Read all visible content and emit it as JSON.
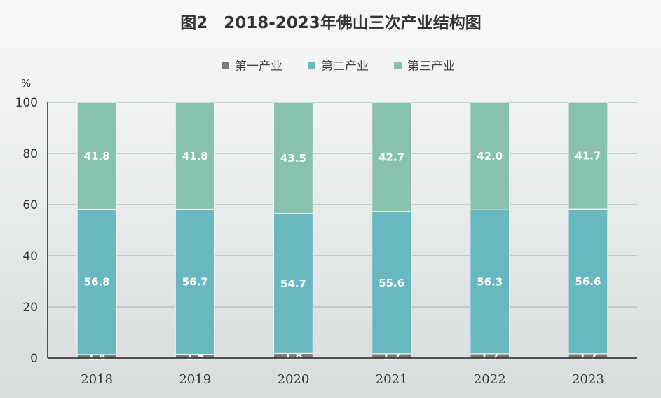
{
  "chart_data": {
    "type": "bar",
    "stacked": true,
    "title": "图2　2018-2023年佛山三次产业结构图",
    "ylabel": "%",
    "ylim": [
      0,
      100
    ],
    "yticks": [
      "0",
      "20",
      "40",
      "60",
      "80",
      "100"
    ],
    "categories": [
      "2018",
      "2019",
      "2020",
      "2021",
      "2022",
      "2023"
    ],
    "series": [
      {
        "name": "第一产业",
        "color": "#7a7a7a",
        "values": [
          1.4,
          1.5,
          1.8,
          1.7,
          1.7,
          1.7
        ],
        "labels": [
          "1.4",
          "1.5",
          "1.8",
          "1.7",
          "1.7",
          "1.7"
        ]
      },
      {
        "name": "第二产业",
        "color": "#67b8c0",
        "values": [
          56.8,
          56.7,
          54.7,
          55.6,
          56.3,
          56.6
        ],
        "labels": [
          "56.8",
          "56.7",
          "54.7",
          "55.6",
          "56.3",
          "56.6"
        ]
      },
      {
        "name": "第三产业",
        "color": "#88c2ad",
        "values": [
          41.8,
          41.8,
          43.5,
          42.7,
          42.0,
          41.7
        ],
        "labels": [
          "41.8",
          "41.8",
          "43.5",
          "42.7",
          "42.0",
          "41.7"
        ]
      }
    ],
    "legend_position": "top",
    "grid": true
  }
}
